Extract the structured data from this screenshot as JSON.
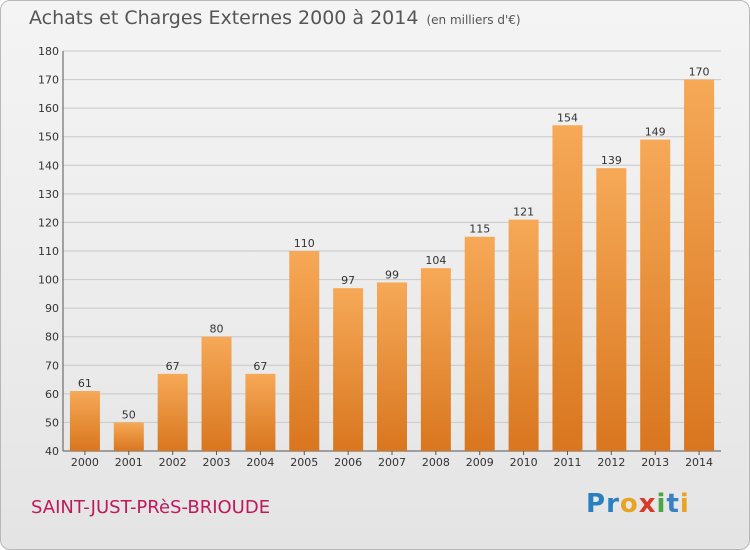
{
  "header": {
    "title": "Achats et Charges Externes 2000 à 2014",
    "unit": "(en milliers d'€)"
  },
  "footer": {
    "place": "SAINT-JUST-PRèS-BRIOUDE",
    "logo": {
      "letters": [
        "P",
        "r",
        "o",
        "x",
        "i",
        "t",
        "i"
      ],
      "colors": [
        "#2a7fc1",
        "#2a7fc1",
        "#e8a323",
        "#d73a2a",
        "#4aa844",
        "#3b7fc4",
        "#e8a323"
      ]
    }
  },
  "colors": {
    "bar_top": "#f6a957",
    "bar_bottom": "#d9761f",
    "grid": "#c8c8c8"
  },
  "chart_data": {
    "type": "bar",
    "title": "Achats et Charges Externes 2000 à 2014",
    "subtitle": "(en milliers d'€)",
    "categories": [
      "2000",
      "2001",
      "2002",
      "2003",
      "2004",
      "2005",
      "2006",
      "2007",
      "2008",
      "2009",
      "2010",
      "2011",
      "2012",
      "2013",
      "2014"
    ],
    "values": [
      61,
      50,
      67,
      80,
      67,
      110,
      97,
      99,
      104,
      115,
      121,
      154,
      139,
      149,
      170
    ],
    "ylim": [
      40,
      180
    ],
    "yticks": [
      40,
      50,
      60,
      70,
      80,
      90,
      100,
      110,
      120,
      130,
      140,
      150,
      160,
      170,
      180
    ],
    "grid": true,
    "data_labels": true
  }
}
